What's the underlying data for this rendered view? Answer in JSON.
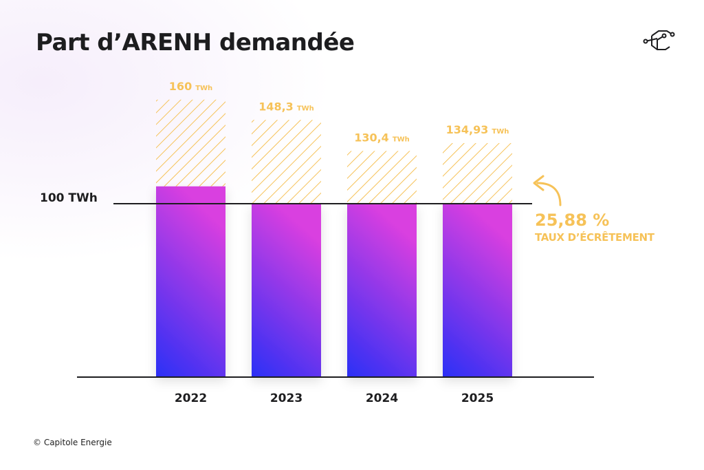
{
  "chart_data": {
    "type": "bar",
    "title": "Part d’ARENH demandée",
    "categories": [
      "2022",
      "2023",
      "2024",
      "2025"
    ],
    "series": [
      {
        "values": [
          110,
          100,
          100,
          100
        ],
        "style": "solid-gradient"
      },
      {
        "values": [
          160,
          148.3,
          130.4,
          134.93
        ],
        "style": "hatched"
      }
    ],
    "data_labels": [
      {
        "value": "160",
        "unit": "TWh"
      },
      {
        "value": "148,3",
        "unit": "TWh"
      },
      {
        "value": "130,4",
        "unit": "TWh"
      },
      {
        "value": "134,93",
        "unit": "TWh"
      }
    ],
    "reference_line": {
      "value": 100,
      "label": "100 TWh"
    },
    "ylim": [
      0,
      170
    ],
    "grid": false,
    "annotation": {
      "value": "25,88 %",
      "label": "TAUX D’ÉCRÊTEMENT",
      "arrow-icon": "curved-arrow-up-left"
    },
    "colors": {
      "gradient_top": "#d93fe0",
      "gradient_bottom": "#2a2ff6",
      "accent": "#f6c258",
      "axis": "#1d1d1f"
    }
  },
  "logo_icon": "capitole-energie-hexagon-logo",
  "credit": "© Capitole Energie"
}
